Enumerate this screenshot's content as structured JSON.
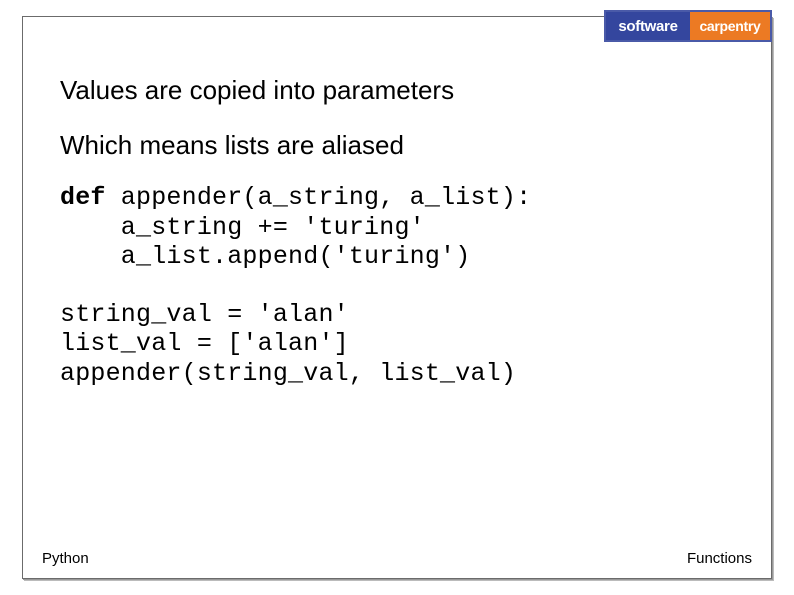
{
  "logo": {
    "left_text": "software",
    "right_text": "carpentry",
    "left_bg": "#34469e",
    "right_bg": "#ec7a23",
    "border_color": "#4a5aa8",
    "text_color": "#ffffff"
  },
  "headlines": {
    "line1": "Values are copied into parameters",
    "line2": "Which means lists are aliased"
  },
  "code": {
    "keyword": "def",
    "block1_rest": " appender(a_string, a_list):\n    a_string += 'turing'\n    a_list.append('turing')",
    "block2": "string_val = 'alan'\nlist_val = ['alan']\nappender(string_val, list_val)"
  },
  "footer": {
    "left": "Python",
    "right": "Functions"
  },
  "styling": {
    "slide_width": 794,
    "slide_height": 595,
    "background": "#ffffff",
    "frame_border_color": "#6b6b6b",
    "headline_fontsize": 26,
    "headline_color": "#000000",
    "code_fontsize": 25,
    "code_font": "Courier New",
    "code_color": "#000000",
    "footer_fontsize": 15,
    "footer_color": "#000000"
  }
}
